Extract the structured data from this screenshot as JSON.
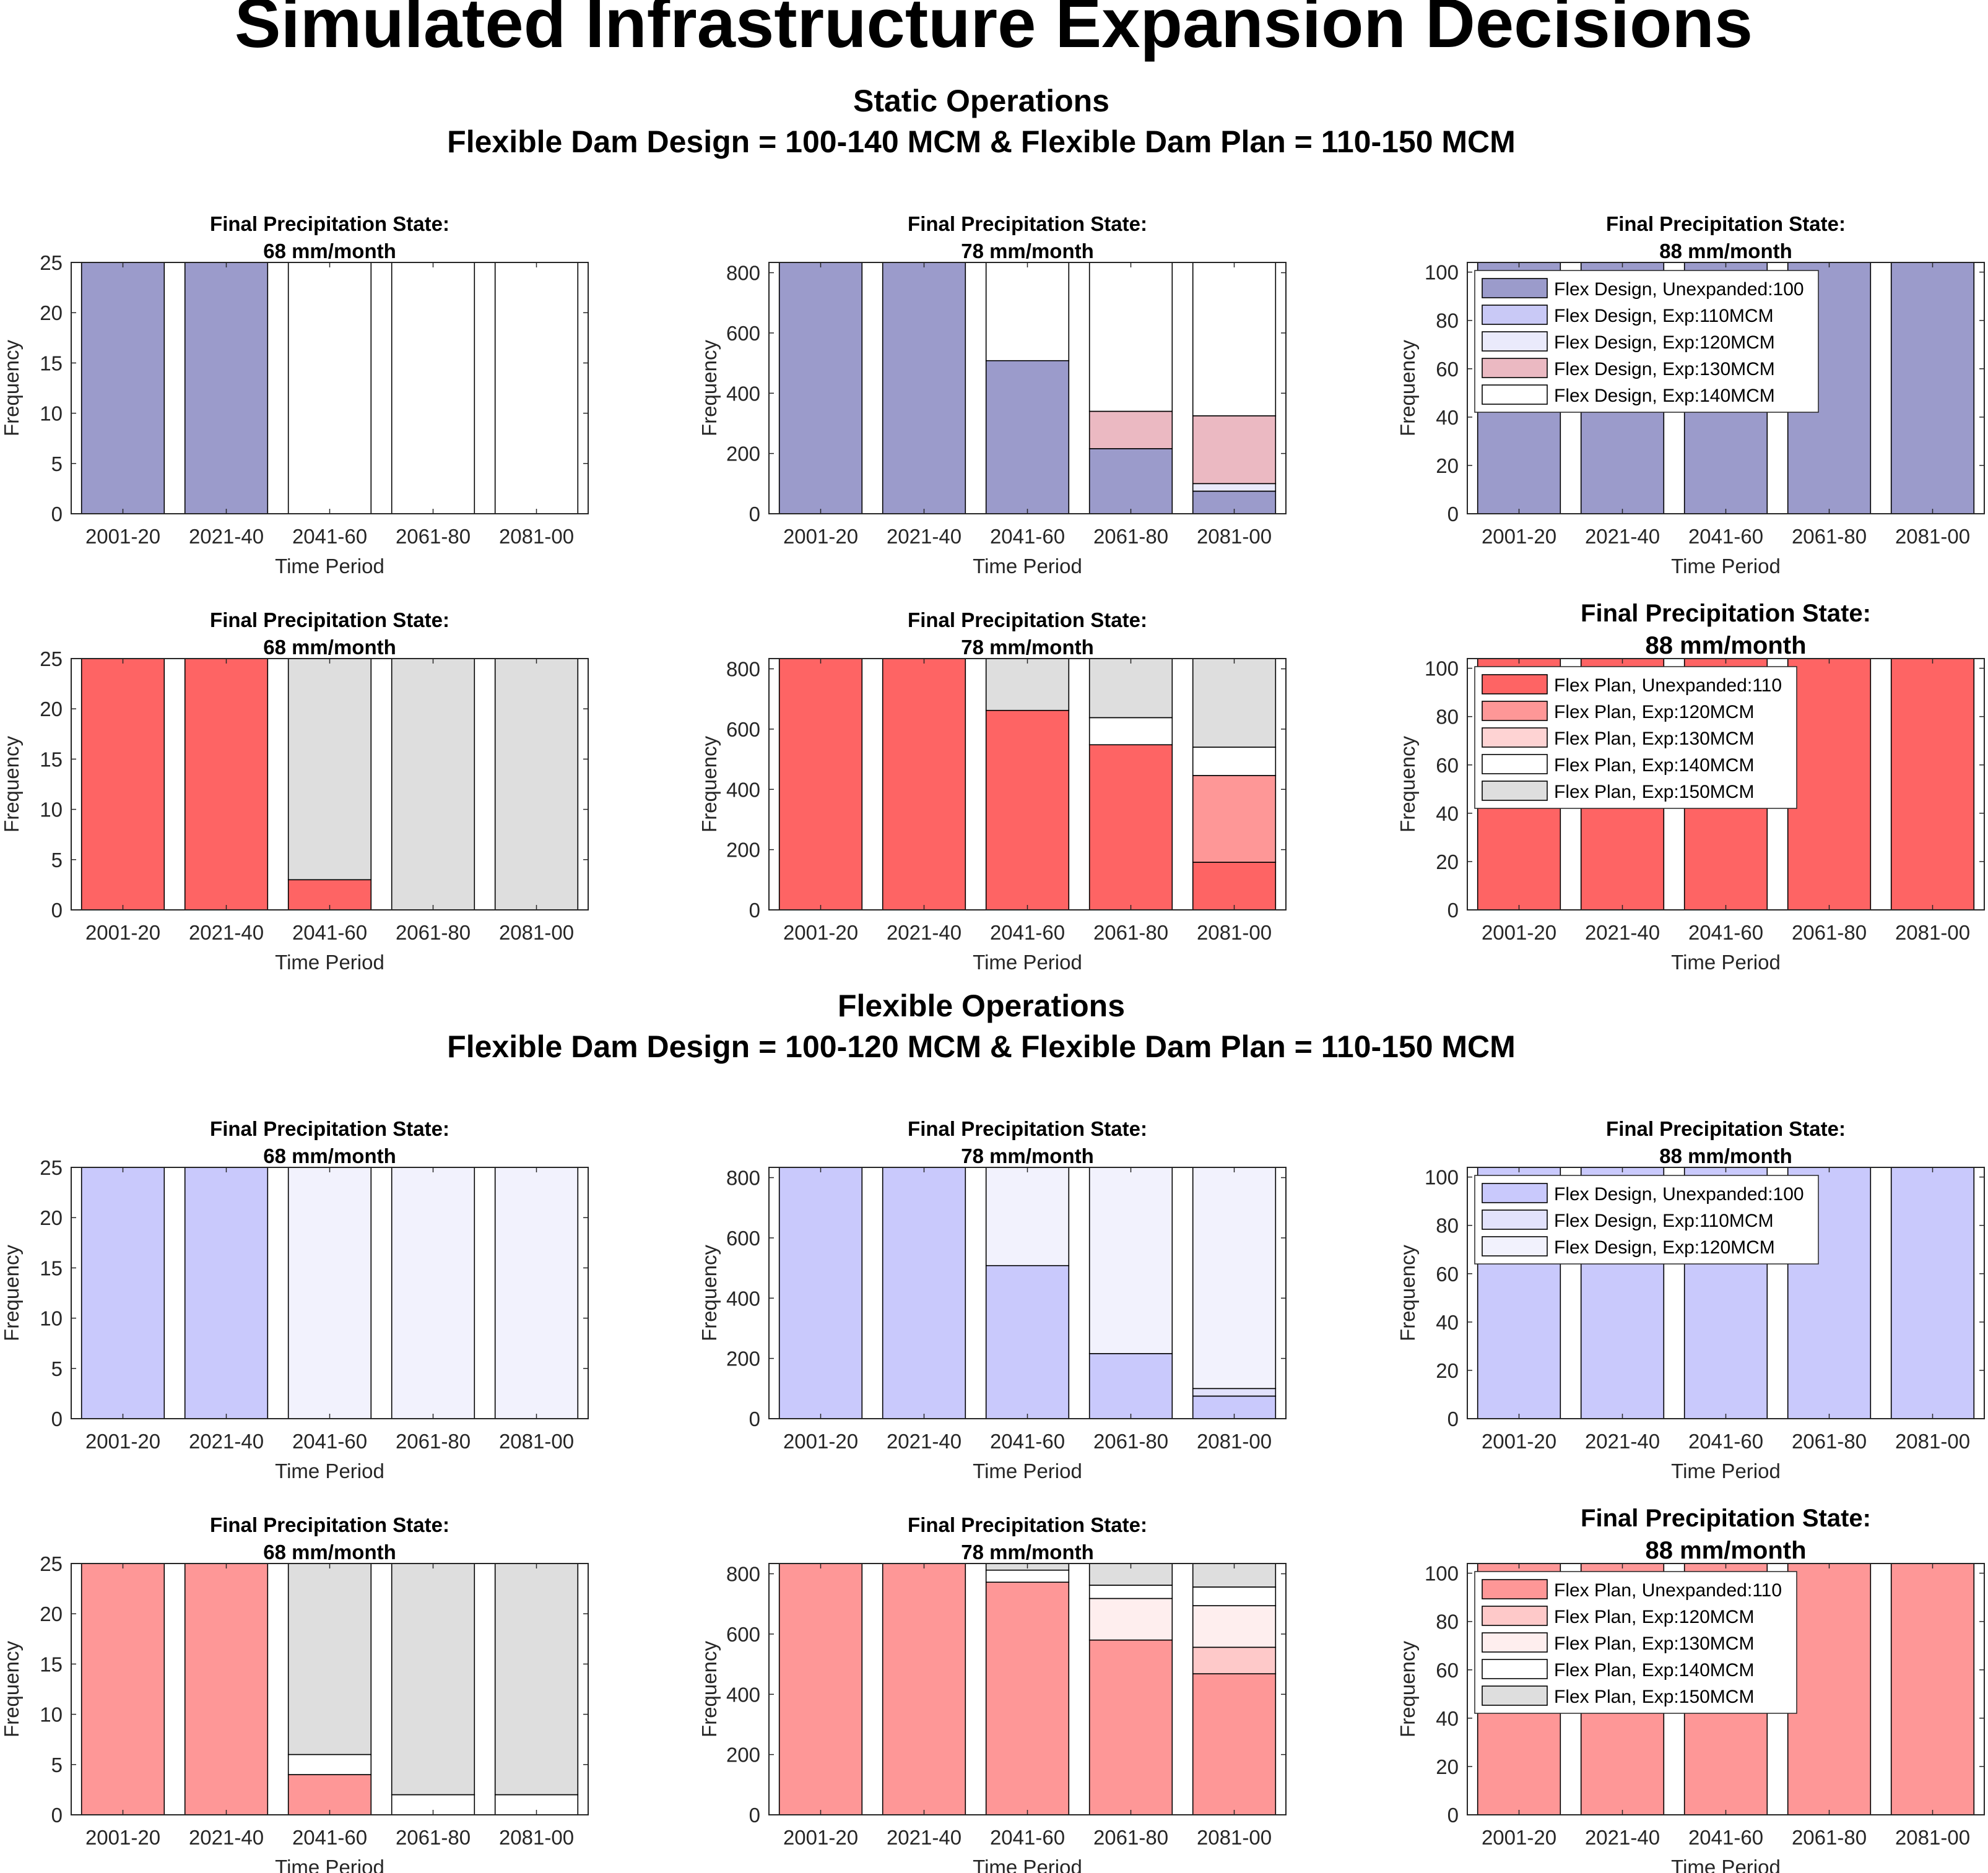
{
  "figure": {
    "title": "Simulated Infrastructure Expansion Decisions",
    "sections": [
      {
        "title": "Static Operations",
        "subtitle": "Flexible Dam Design = 100-140 MCM & Flexible Dam Plan = 110-150 MCM"
      },
      {
        "title": "Flexible Operations",
        "subtitle": "Flexible Dam Design = 100-120 MCM & Flexible Dam Plan = 110-150 MCM"
      }
    ]
  },
  "colors": {
    "static_design": [
      "#9b9bcb",
      "#c9c9f6",
      "#eaeafb",
      "#ebb9c2",
      "#ffffff"
    ],
    "static_plan": [
      "#fe6464",
      "#fe9797",
      "#fed3d3",
      "#ffffff",
      "#dedede"
    ],
    "flex_design": [
      "#c9c9fc",
      "#e2e2fc",
      "#f2f2fd"
    ],
    "flex_plan": [
      "#fe9797",
      "#fec9c9",
      "#feeeee",
      "#ffffff",
      "#dedede"
    ]
  },
  "chart_data": [
    {
      "id": "s-design-68",
      "type": "bar",
      "stacked": true,
      "title": [
        "Final Precipitation State:",
        "68 mm/month"
      ],
      "categories": [
        "2001-20",
        "2021-40",
        "2041-60",
        "2061-80",
        "2081-00"
      ],
      "xlabel": "Time Period",
      "ylabel": "Frequency",
      "ylim": [
        0,
        25
      ],
      "yticks": [
        0,
        5,
        10,
        15,
        20,
        25
      ],
      "palette": "static_design",
      "series": [
        {
          "values": [
            25,
            25,
            0,
            0,
            0
          ]
        },
        {
          "values": [
            0,
            0,
            0,
            0,
            0
          ]
        },
        {
          "values": [
            0,
            0,
            0,
            0,
            0
          ]
        },
        {
          "values": [
            0,
            0,
            0,
            0,
            0
          ]
        },
        {
          "values": [
            0,
            0,
            25,
            25,
            25
          ]
        }
      ]
    },
    {
      "id": "s-design-78",
      "type": "bar",
      "stacked": true,
      "title": [
        "Final Precipitation State:",
        "78 mm/month"
      ],
      "categories": [
        "2001-20",
        "2021-40",
        "2041-60",
        "2061-80",
        "2081-00"
      ],
      "xlabel": "Time Period",
      "ylabel": "Frequency",
      "ylim": [
        0,
        834
      ],
      "yticks": [
        0,
        200,
        400,
        600,
        800
      ],
      "palette": "static_design",
      "series": [
        {
          "values": [
            834,
            834,
            508,
            216,
            75
          ]
        },
        {
          "values": [
            0,
            0,
            0,
            0,
            0
          ]
        },
        {
          "values": [
            0,
            0,
            0,
            0,
            25
          ]
        },
        {
          "values": [
            0,
            0,
            0,
            124,
            225
          ]
        },
        {
          "values": [
            0,
            0,
            326,
            494,
            509
          ]
        }
      ]
    },
    {
      "id": "s-design-88",
      "type": "bar",
      "stacked": true,
      "title": [
        "Final Precipitation State:",
        "88 mm/month"
      ],
      "categories": [
        "2001-20",
        "2021-40",
        "2041-60",
        "2061-80",
        "2081-00"
      ],
      "xlabel": "Time Period",
      "ylabel": "Frequency",
      "ylim": [
        0,
        104
      ],
      "yticks": [
        0,
        20,
        40,
        60,
        80,
        100
      ],
      "palette": "static_design",
      "legend_position": "top-left",
      "legend": [
        "Flex Design, Unexpanded:100",
        "Flex Design, Exp:110MCM",
        "Flex Design, Exp:120MCM",
        "Flex Design, Exp:130MCM",
        "Flex Design, Exp:140MCM"
      ],
      "series": [
        {
          "values": [
            104,
            104,
            104,
            104,
            104
          ]
        },
        {
          "values": [
            0,
            0,
            0,
            0,
            0
          ]
        },
        {
          "values": [
            0,
            0,
            0,
            0,
            0
          ]
        },
        {
          "values": [
            0,
            0,
            0,
            0,
            0
          ]
        },
        {
          "values": [
            0,
            0,
            0,
            0,
            0
          ]
        }
      ]
    },
    {
      "id": "s-plan-68",
      "type": "bar",
      "stacked": true,
      "title": [
        "Final Precipitation State:",
        "68 mm/month"
      ],
      "categories": [
        "2001-20",
        "2021-40",
        "2041-60",
        "2061-80",
        "2081-00"
      ],
      "xlabel": "Time Period",
      "ylabel": "Frequency",
      "ylim": [
        0,
        25
      ],
      "yticks": [
        0,
        5,
        10,
        15,
        20,
        25
      ],
      "palette": "static_plan",
      "series": [
        {
          "values": [
            25,
            25,
            3,
            0,
            0
          ]
        },
        {
          "values": [
            0,
            0,
            0,
            0,
            0
          ]
        },
        {
          "values": [
            0,
            0,
            0,
            0,
            0
          ]
        },
        {
          "values": [
            0,
            0,
            0,
            0,
            0
          ]
        },
        {
          "values": [
            0,
            0,
            22,
            25,
            25
          ]
        }
      ]
    },
    {
      "id": "s-plan-78",
      "type": "bar",
      "stacked": true,
      "title": [
        "Final Precipitation State:",
        "78 mm/month"
      ],
      "categories": [
        "2001-20",
        "2021-40",
        "2041-60",
        "2061-80",
        "2081-00"
      ],
      "xlabel": "Time Period",
      "ylabel": "Frequency",
      "ylim": [
        0,
        834
      ],
      "yticks": [
        0,
        200,
        400,
        600,
        800
      ],
      "palette": "static_plan",
      "series": [
        {
          "values": [
            834,
            834,
            662,
            548,
            158
          ]
        },
        {
          "values": [
            0,
            0,
            0,
            0,
            288
          ]
        },
        {
          "values": [
            0,
            0,
            0,
            0,
            0
          ]
        },
        {
          "values": [
            0,
            0,
            0,
            90,
            94
          ]
        },
        {
          "values": [
            0,
            0,
            172,
            196,
            294
          ]
        }
      ]
    },
    {
      "id": "s-plan-88",
      "type": "bar",
      "stacked": true,
      "title": [
        "Final Precipitation State:",
        "88 mm/month"
      ],
      "large_title": true,
      "categories": [
        "2001-20",
        "2021-40",
        "2041-60",
        "2061-80",
        "2081-00"
      ],
      "xlabel": "Time Period",
      "ylabel": "Frequency",
      "ylim": [
        0,
        104
      ],
      "yticks": [
        0,
        20,
        40,
        60,
        80,
        100
      ],
      "palette": "static_plan",
      "legend_position": "top-left",
      "legend": [
        "Flex Plan, Unexpanded:110",
        "Flex Plan, Exp:120MCM",
        "Flex Plan, Exp:130MCM",
        "Flex Plan, Exp:140MCM",
        "Flex Plan, Exp:150MCM"
      ],
      "series": [
        {
          "values": [
            104,
            104,
            104,
            104,
            104
          ]
        },
        {
          "values": [
            0,
            0,
            0,
            0,
            0
          ]
        },
        {
          "values": [
            0,
            0,
            0,
            0,
            0
          ]
        },
        {
          "values": [
            0,
            0,
            0,
            0,
            0
          ]
        },
        {
          "values": [
            0,
            0,
            0,
            0,
            0
          ]
        }
      ]
    },
    {
      "id": "f-design-68",
      "type": "bar",
      "stacked": true,
      "title": [
        "Final Precipitation State:",
        "68 mm/month"
      ],
      "categories": [
        "2001-20",
        "2021-40",
        "2041-60",
        "2061-80",
        "2081-00"
      ],
      "xlabel": "Time Period",
      "ylabel": "Frequency",
      "ylim": [
        0,
        25
      ],
      "yticks": [
        0,
        5,
        10,
        15,
        20,
        25
      ],
      "palette": "flex_design",
      "series": [
        {
          "values": [
            25,
            25,
            0,
            0,
            0
          ]
        },
        {
          "values": [
            0,
            0,
            0,
            0,
            0
          ]
        },
        {
          "values": [
            0,
            0,
            25,
            25,
            25
          ]
        }
      ]
    },
    {
      "id": "f-design-78",
      "type": "bar",
      "stacked": true,
      "title": [
        "Final Precipitation State:",
        "78 mm/month"
      ],
      "categories": [
        "2001-20",
        "2021-40",
        "2041-60",
        "2061-80",
        "2081-00"
      ],
      "xlabel": "Time Period",
      "ylabel": "Frequency",
      "ylim": [
        0,
        834
      ],
      "yticks": [
        0,
        200,
        400,
        600,
        800
      ],
      "palette": "flex_design",
      "series": [
        {
          "values": [
            834,
            834,
            508,
            216,
            75
          ]
        },
        {
          "values": [
            0,
            0,
            0,
            0,
            25
          ]
        },
        {
          "values": [
            0,
            0,
            326,
            618,
            734
          ]
        }
      ]
    },
    {
      "id": "f-design-88",
      "type": "bar",
      "stacked": true,
      "title": [
        "Final Precipitation State:",
        "88 mm/month"
      ],
      "categories": [
        "2001-20",
        "2021-40",
        "2041-60",
        "2061-80",
        "2081-00"
      ],
      "xlabel": "Time Period",
      "ylabel": "Frequency",
      "ylim": [
        0,
        104
      ],
      "yticks": [
        0,
        20,
        40,
        60,
        80,
        100
      ],
      "palette": "flex_design",
      "legend_position": "top-left",
      "legend": [
        "Flex Design, Unexpanded:100",
        "Flex Design, Exp:110MCM",
        "Flex Design, Exp:120MCM"
      ],
      "series": [
        {
          "values": [
            104,
            104,
            104,
            104,
            104
          ]
        },
        {
          "values": [
            0,
            0,
            0,
            0,
            0
          ]
        },
        {
          "values": [
            0,
            0,
            0,
            0,
            0
          ]
        }
      ]
    },
    {
      "id": "f-plan-68",
      "type": "bar",
      "stacked": true,
      "title": [
        "Final Precipitation State:",
        "68 mm/month"
      ],
      "categories": [
        "2001-20",
        "2021-40",
        "2041-60",
        "2061-80",
        "2081-00"
      ],
      "xlabel": "Time Period",
      "ylabel": "Frequency",
      "ylim": [
        0,
        25
      ],
      "yticks": [
        0,
        5,
        10,
        15,
        20,
        25
      ],
      "palette": "flex_plan",
      "series": [
        {
          "values": [
            25,
            25,
            4,
            0,
            0
          ]
        },
        {
          "values": [
            0,
            0,
            0,
            0,
            0
          ]
        },
        {
          "values": [
            0,
            0,
            0,
            0,
            0
          ]
        },
        {
          "values": [
            0,
            0,
            2,
            2,
            2
          ]
        },
        {
          "values": [
            0,
            0,
            19,
            23,
            23
          ]
        }
      ]
    },
    {
      "id": "f-plan-78",
      "type": "bar",
      "stacked": true,
      "title": [
        "Final Precipitation State:",
        "78 mm/month"
      ],
      "categories": [
        "2001-20",
        "2021-40",
        "2041-60",
        "2061-80",
        "2081-00"
      ],
      "xlabel": "Time Period",
      "ylabel": "Frequency",
      "ylim": [
        0,
        834
      ],
      "yticks": [
        0,
        200,
        400,
        600,
        800
      ],
      "palette": "flex_plan",
      "series": [
        {
          "values": [
            834,
            834,
            772,
            580,
            468
          ]
        },
        {
          "values": [
            0,
            0,
            0,
            0,
            88
          ]
        },
        {
          "values": [
            0,
            0,
            0,
            138,
            138
          ]
        },
        {
          "values": [
            0,
            0,
            40,
            44,
            62
          ]
        },
        {
          "values": [
            0,
            0,
            22,
            72,
            78
          ]
        }
      ]
    },
    {
      "id": "f-plan-88",
      "type": "bar",
      "stacked": true,
      "title": [
        "Final Precipitation State:",
        "88 mm/month"
      ],
      "large_title": true,
      "categories": [
        "2001-20",
        "2021-40",
        "2041-60",
        "2061-80",
        "2081-00"
      ],
      "xlabel": "Time Period",
      "ylabel": "Frequency",
      "ylim": [
        0,
        104
      ],
      "yticks": [
        0,
        20,
        40,
        60,
        80,
        100
      ],
      "palette": "flex_plan",
      "legend_position": "top-left",
      "legend": [
        "Flex Plan, Unexpanded:110",
        "Flex Plan, Exp:120MCM",
        "Flex Plan, Exp:130MCM",
        "Flex Plan, Exp:140MCM",
        "Flex Plan, Exp:150MCM"
      ],
      "series": [
        {
          "values": [
            104,
            104,
            104,
            104,
            104
          ]
        },
        {
          "values": [
            0,
            0,
            0,
            0,
            0
          ]
        },
        {
          "values": [
            0,
            0,
            0,
            0,
            0
          ]
        },
        {
          "values": [
            0,
            0,
            0,
            0,
            0
          ]
        },
        {
          "values": [
            0,
            0,
            0,
            0,
            0
          ]
        }
      ]
    }
  ]
}
